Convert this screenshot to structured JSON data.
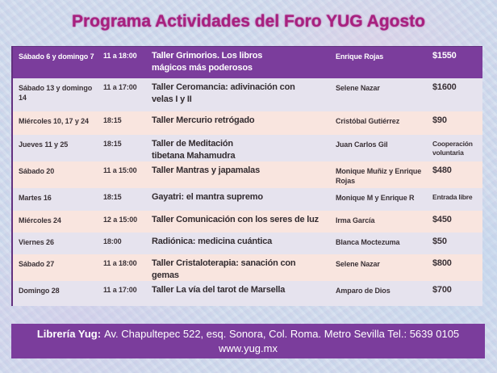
{
  "title": "Programa Actividades del Foro YUG Agosto",
  "table": {
    "rows": [
      {
        "date": "Sábado 6 y domingo 7",
        "time": "11 a 18:00",
        "activity": "Taller Grimorios. Los libros\nmágicos más poderosos",
        "facilitator": "Enrique Rojas",
        "price": "$1550"
      },
      {
        "date": "Sábado 13 y domingo\n14",
        "time": "11 a 17:00",
        "activity": "Taller Ceromancia: adivinación con\nvelas I y II",
        "facilitator": "Selene Nazar",
        "price": "$1600"
      },
      {
        "date": "Miércoles 10, 17 y 24",
        "time": "18:15",
        "activity": "Taller Mercurio retrógado",
        "facilitator": "Cristóbal Gutiérrez",
        "price": "$90"
      },
      {
        "date": "Jueves 11 y 25",
        "time": "18:15",
        "activity": "Taller de Meditación\ntibetana Mahamudra",
        "facilitator": "Juan Carlos Gil",
        "price": "Cooperación\nvoluntaria"
      },
      {
        "date": "Sábado 20",
        "time": "11 a 15:00",
        "activity": "Taller Mantras y japamalas",
        "facilitator": "Monique Muñiz y Enrique\nRojas",
        "price": "$480"
      },
      {
        "date": "Martes 16",
        "time": "18:15",
        "activity": "Gayatri: el mantra supremo",
        "facilitator": "Monique M y Enrique R",
        "price": "Entrada libre"
      },
      {
        "date": "Miércoles 24",
        "time": "12 a 15:00",
        "activity": "Taller Comunicación con los seres de luz",
        "facilitator": "Irma García",
        "price": "$450"
      },
      {
        "date": "Viernes 26",
        "time": "18:00",
        "activity": "Radiónica: medicina cuántica",
        "facilitator": "Blanca Moctezuma",
        "price": "$50"
      },
      {
        "date": "Sábado 27",
        "time": "11 a 18:00",
        "activity": "Taller Cristaloterapia: sanación con\ngemas",
        "facilitator": "Selene Nazar",
        "price": "$800"
      },
      {
        "date": "Domingo 28",
        "time": "11 a 17:00",
        "activity": "Taller La vía del tarot de Marsella",
        "facilitator": "Amparo de Dios",
        "price": "$700"
      }
    ]
  },
  "footer": {
    "label": "Librería Yug:",
    "address": "Av. Chapultepec 522, esq. Sonora, Col. Roma. Metro Sevilla Tel.: 5639 0105",
    "website": "www.yug.mx"
  },
  "colors": {
    "header_purple": "#7b3d9c",
    "row_pink": "#f9e5df",
    "row_lavender": "#e6e3ee",
    "title_magenta": "#a8217e",
    "background_blue": "#ccd8eb",
    "text_dark": "#3a3136"
  }
}
